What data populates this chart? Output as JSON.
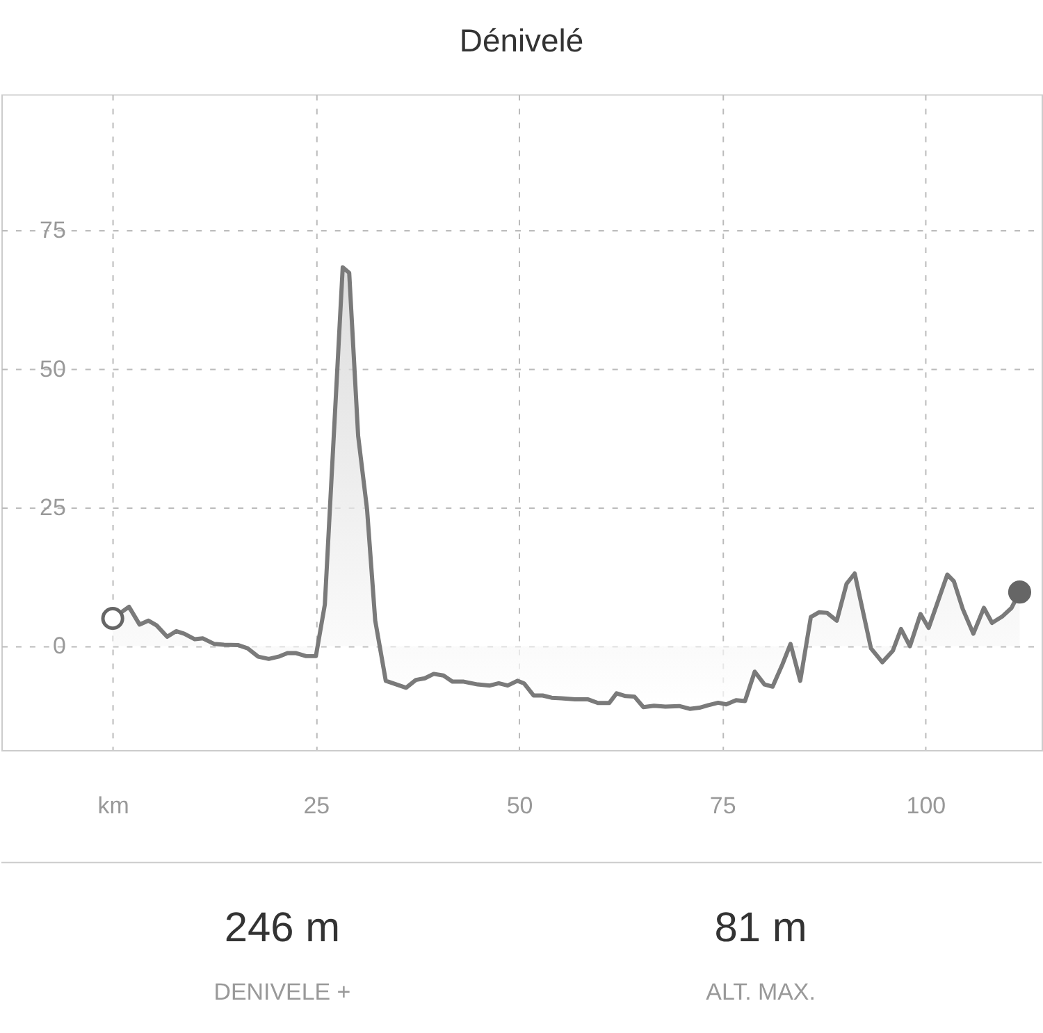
{
  "chart_data": {
    "type": "area",
    "title": "Dénivelé",
    "xlim": [
      -13.7,
      114.3
    ],
    "ylim": [
      -18.75,
      99.5
    ],
    "xticks": [
      {
        "value": 0,
        "label": "km"
      },
      25,
      50,
      75,
      100
    ],
    "yticks": [
      0,
      25,
      50,
      75
    ],
    "grid": true,
    "line_style": "solid",
    "legend": false,
    "series": [
      {
        "color": "#7a7a7a",
        "x": [
          0,
          2.0,
          3.3,
          4.4,
          5.4,
          6.7,
          7.8,
          8.8,
          10.1,
          11.1,
          12.5,
          13.7,
          15.4,
          16.6,
          17.9,
          19.2,
          20.4,
          21.5,
          22.5,
          23.8,
          25.0,
          26.1,
          28.3,
          29.1,
          30.2,
          31.3,
          32.3,
          33.6,
          36.1,
          37.3,
          38.4,
          39.5,
          40.7,
          41.8,
          43.2,
          44.9,
          46.4,
          47.5,
          48.6,
          49.8,
          50.6,
          51.8,
          52.9,
          54.0,
          55.2,
          56.9,
          58.5,
          59.7,
          61.1,
          62.0,
          63.1,
          64.2,
          65.3,
          66.6,
          68.0,
          69.7,
          71.0,
          72.2,
          73.4,
          74.5,
          75.5,
          76.7,
          77.8,
          79.0,
          80.2,
          81.2,
          82.4,
          83.4,
          84.6,
          85.9,
          86.9,
          87.9,
          89.1,
          90.3,
          91.3,
          93.3,
          94.7,
          96.0,
          97.0,
          98.1,
          99.4,
          100.4,
          102.7,
          103.5,
          104.6,
          105.9,
          107.2,
          108.2,
          109.5,
          110.6,
          111.6
        ],
        "values": [
          5,
          7.1,
          3.9,
          4.6,
          3.75,
          1.7,
          2.7,
          2.25,
          1.25,
          1.4,
          0.4,
          0.25,
          0.2,
          -0.4,
          -1.9,
          -2.3,
          -1.9,
          -1.25,
          -1.25,
          -1.8,
          -1.8,
          7.5,
          68.3,
          67.3,
          37.9,
          24.6,
          4.6,
          -6.25,
          -7.5,
          -6.1,
          -5.8,
          -5,
          -5.3,
          -6.4,
          -6.4,
          -6.9,
          -7.1,
          -6.7,
          -7.1,
          -6.25,
          -6.7,
          -8.9,
          -8.9,
          -9.3,
          -9.4,
          -9.6,
          -9.6,
          -10.25,
          -10.25,
          -8.5,
          -9,
          -9.1,
          -11,
          -10.75,
          -10.9,
          -10.8,
          -11.3,
          -11.1,
          -10.6,
          -10.2,
          -10.5,
          -9.75,
          -9.9,
          -4.6,
          -6.9,
          -7.3,
          -3.3,
          0.4,
          -6.25,
          5.25,
          6.1,
          6.0,
          4.6,
          11.25,
          13.1,
          -0.4,
          -2.9,
          -0.8,
          3.1,
          0,
          5.8,
          3.3,
          12.9,
          11.7,
          6.7,
          2.25,
          6.9,
          4.2,
          5.4,
          6.9,
          9.75
        ]
      },
      {
        "type": "scatter",
        "marker": "circle",
        "color": "#666666",
        "colors": [
          "#ffffff",
          "#666666"
        ],
        "x": [
          0,
          111.6
        ],
        "values": [
          5,
          9.75
        ]
      }
    ],
    "annotations": [
      "246 m",
      "DENIVELE +",
      "81 m",
      "ALT. MAX."
    ]
  }
}
